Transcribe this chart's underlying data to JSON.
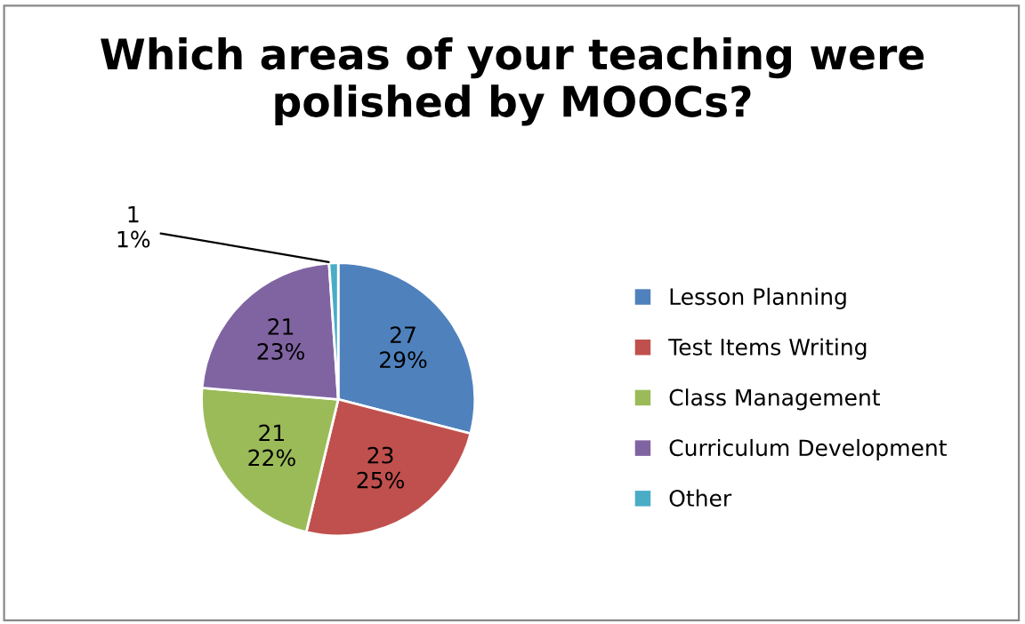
{
  "chart_data": {
    "type": "pie",
    "title": "Which areas of your teaching were polished by MOOCs?",
    "categories": [
      "Lesson Planning",
      "Test Items Writing",
      "Class Management",
      "Curriculum Development",
      "Other"
    ],
    "values": [
      27,
      23,
      21,
      21,
      1
    ],
    "colors": [
      "#4f81bd",
      "#c0504d",
      "#9bbb59",
      "#8064a2",
      "#4bacc6"
    ],
    "value_labels": [
      "27\n29%",
      "23\n25%",
      "21\n22%",
      "21\n23%",
      "1\n1%"
    ],
    "legend": "right"
  }
}
